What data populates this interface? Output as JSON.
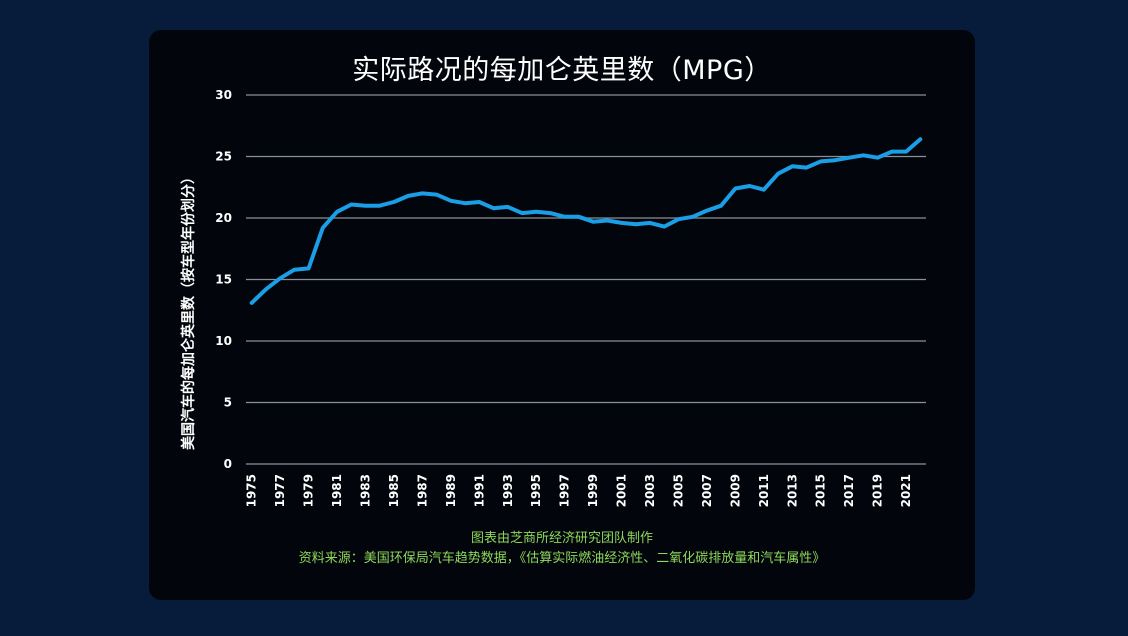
{
  "chart_data": {
    "type": "line",
    "title": "实际路况的每加仑英里数（MPG）",
    "ylabel": "美国汽车的每加仑英里数（按车型年份划分）",
    "xlabel": "",
    "ylim": [
      0,
      30
    ],
    "yticks": [
      0,
      5,
      10,
      15,
      20,
      25,
      30
    ],
    "xticks": [
      "1975",
      "1977",
      "1979",
      "1981",
      "1983",
      "1985",
      "1987",
      "1989",
      "1991",
      "1993",
      "1995",
      "1997",
      "1999",
      "2001",
      "2003",
      "2005",
      "2007",
      "2009",
      "2011",
      "2013",
      "2015",
      "2017",
      "2019",
      "2021"
    ],
    "grid": true,
    "line_color": "#1a9ee6",
    "series": [
      {
        "x": [
          1975,
          1976,
          1977,
          1978,
          1979,
          1980,
          1981,
          1982,
          1983,
          1984,
          1985,
          1986,
          1987,
          1988,
          1989,
          1990,
          1991,
          1992,
          1993,
          1994,
          1995,
          1996,
          1997,
          1998,
          1999,
          2000,
          2001,
          2002,
          2003,
          2004,
          2005,
          2006,
          2007,
          2008,
          2009,
          2010,
          2011,
          2012,
          2013,
          2014,
          2015,
          2016,
          2017,
          2018,
          2019,
          2020,
          2021,
          2022
        ],
        "values": [
          13.1,
          14.2,
          15.1,
          15.8,
          15.9,
          19.2,
          20.5,
          21.1,
          21.0,
          21.0,
          21.3,
          21.8,
          22.0,
          21.9,
          21.4,
          21.2,
          21.3,
          20.8,
          20.9,
          20.4,
          20.5,
          20.4,
          20.1,
          20.1,
          19.7,
          19.8,
          19.6,
          19.5,
          19.6,
          19.3,
          19.9,
          20.1,
          20.6,
          21.0,
          22.4,
          22.6,
          22.3,
          23.6,
          24.2,
          24.1,
          24.6,
          24.7,
          24.9,
          25.1,
          24.9,
          25.4,
          25.4,
          26.4
        ]
      }
    ]
  },
  "footer": {
    "line1": "图表由芝商所经济研究团队制作",
    "line2": "资料来源：美国环保局汽车趋势数据，《估算实际燃油经济性、二氧化碳排放量和汽车属性》"
  },
  "colors": {
    "background": "#061c3a",
    "panel": "#02060c",
    "footer_text": "#8fd85a"
  }
}
